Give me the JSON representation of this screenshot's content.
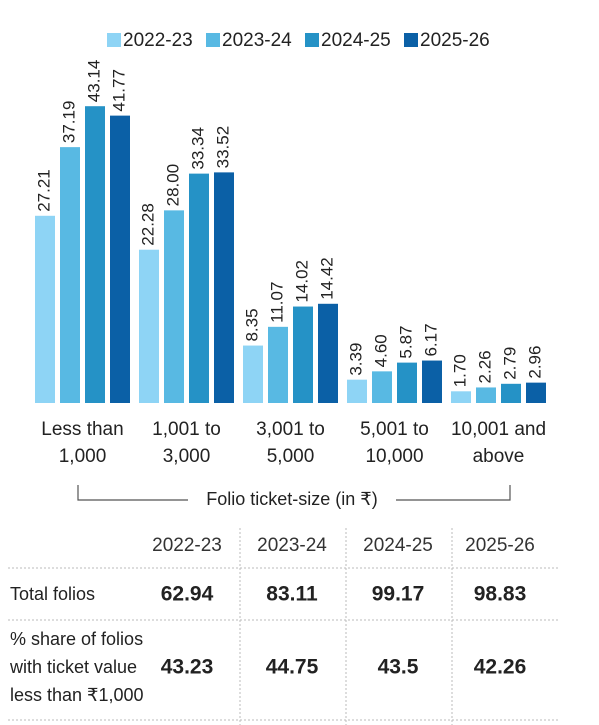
{
  "chart_data": {
    "type": "bar",
    "categories": [
      [
        "Less than",
        "1,000"
      ],
      [
        "1,001 to",
        "3,000"
      ],
      [
        "3,001 to",
        "5,000"
      ],
      [
        "5,001 to",
        "10,000"
      ],
      [
        "10,001 and",
        "above"
      ]
    ],
    "x_label": "Folio ticket-size (in ₹)",
    "series": [
      {
        "name": "2022-23",
        "color": "#8ed4f5",
        "values": [
          27.21,
          22.28,
          8.35,
          3.39,
          1.7
        ],
        "value_labels": [
          "27.21",
          "22.28",
          "8.35",
          "3.39",
          "1.70"
        ]
      },
      {
        "name": "2023-24",
        "color": "#58b9e3",
        "values": [
          37.19,
          28.0,
          11.07,
          4.6,
          2.26
        ],
        "value_labels": [
          "37.19",
          "28.00",
          "11.07",
          "4.60",
          "2.26"
        ]
      },
      {
        "name": "2024-25",
        "color": "#2592c6",
        "values": [
          43.14,
          33.34,
          14.02,
          5.87,
          2.79
        ],
        "value_labels": [
          "43.14",
          "33.34",
          "14.02",
          "5.87",
          "2.79"
        ]
      },
      {
        "name": "2025-26",
        "color": "#0b60a6",
        "values": [
          41.77,
          33.52,
          14.42,
          6.17,
          2.96
        ],
        "value_labels": [
          "41.77",
          "33.52",
          "14.42",
          "6.17",
          "2.96"
        ]
      }
    ]
  },
  "table": {
    "header": [
      "2022-23",
      "2023-24",
      "2024-25",
      "2025-26"
    ],
    "rows": [
      {
        "label": [
          "Total folios"
        ],
        "values": [
          62.94,
          83.11,
          99.17,
          98.83
        ]
      },
      {
        "label": [
          "% share of folios",
          "with ticket value",
          "less than ₹1,000"
        ],
        "values": [
          43.23,
          44.75,
          43.5,
          42.26
        ]
      }
    ]
  }
}
